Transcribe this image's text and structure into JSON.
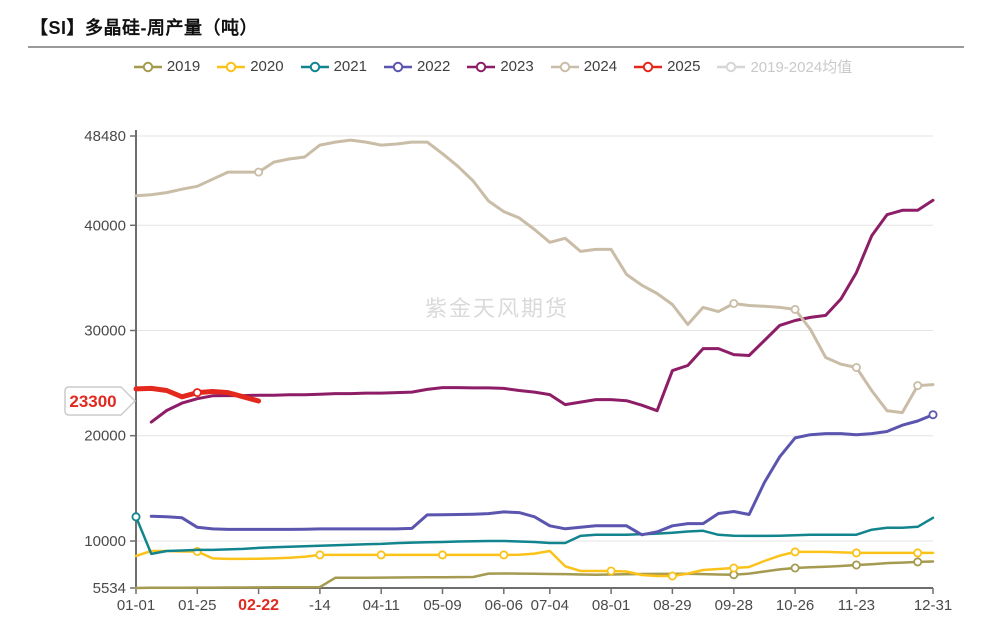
{
  "title": "【SI】多晶硅-周产量（吨）",
  "watermark": "紫金天风期货",
  "annotation": {
    "value_badge": "23300",
    "badge_color": "#e02a20",
    "highlighted_date": "02-22"
  },
  "legend": {
    "items": [
      {
        "label": "2019",
        "color": "#a49a50",
        "dimmed": false
      },
      {
        "label": "2020",
        "color": "#fbc21a",
        "dimmed": false
      },
      {
        "label": "2021",
        "color": "#12848e",
        "dimmed": false
      },
      {
        "label": "2022",
        "color": "#5b55af",
        "dimmed": false
      },
      {
        "label": "2023",
        "color": "#8d1d66",
        "dimmed": false
      },
      {
        "label": "2024",
        "color": "#cabda7",
        "dimmed": false
      },
      {
        "label": "2025",
        "color": "#e3281e",
        "dimmed": false
      },
      {
        "label": "2019-2024均值",
        "color": "#d6d6d6",
        "dimmed": true
      }
    ]
  },
  "chart_data": {
    "type": "line",
    "title": "【SI】多晶硅-周产量（吨）",
    "xlabel": "",
    "ylabel": "",
    "grid": true,
    "legend_position": "top",
    "y_axis": {
      "min": 5534,
      "max": 48480,
      "ticks": [
        48480,
        40000,
        30000,
        20000,
        10000,
        5534
      ]
    },
    "x_axis": {
      "n_points": 53,
      "labels": [
        {
          "text": "01-01",
          "i": 0,
          "highlight": false
        },
        {
          "text": "01-25",
          "i": 4,
          "highlight": false
        },
        {
          "text": "02-22",
          "i": 8,
          "highlight": true
        },
        {
          "text": "-14",
          "i": 12,
          "highlight": false
        },
        {
          "text": "04-11",
          "i": 16,
          "highlight": false
        },
        {
          "text": "05-09",
          "i": 20,
          "highlight": false
        },
        {
          "text": "06-06",
          "i": 24,
          "highlight": false
        },
        {
          "text": "07-04",
          "i": 27,
          "highlight": false
        },
        {
          "text": "08-01",
          "i": 31,
          "highlight": false
        },
        {
          "text": "08-29",
          "i": 35,
          "highlight": false
        },
        {
          "text": "09-28",
          "i": 39,
          "highlight": false
        },
        {
          "text": "10-26",
          "i": 43,
          "highlight": false
        },
        {
          "text": "11-23",
          "i": 47,
          "highlight": false
        },
        {
          "text": "12-31",
          "i": 52,
          "highlight": false
        }
      ]
    },
    "series": [
      {
        "name": "2019",
        "color": "#a49a50",
        "width": 2.5,
        "start": 0,
        "markers": [
          39,
          43,
          47,
          51
        ],
        "values": [
          5534,
          5550,
          5560,
          5560,
          5570,
          5570,
          5580,
          5580,
          5590,
          5600,
          5600,
          5610,
          5620,
          6500,
          6510,
          6510,
          6520,
          6530,
          6540,
          6550,
          6560,
          6570,
          6580,
          6900,
          6910,
          6900,
          6880,
          6865,
          6850,
          6820,
          6800,
          6820,
          6840,
          6860,
          6870,
          6870,
          6880,
          6850,
          6820,
          6800,
          6900,
          7100,
          7300,
          7430,
          7500,
          7560,
          7620,
          7715,
          7800,
          7900,
          7950,
          8010,
          8050
        ]
      },
      {
        "name": "2020",
        "color": "#fbc21a",
        "width": 2.5,
        "start": 0,
        "markers": [
          4,
          12,
          16,
          20,
          24,
          31,
          35,
          39,
          43,
          47,
          51
        ],
        "values": [
          8580,
          9050,
          9050,
          9000,
          9000,
          8350,
          8300,
          8300,
          8320,
          8350,
          8400,
          8500,
          8680,
          8680,
          8680,
          8680,
          8680,
          8680,
          8680,
          8680,
          8680,
          8680,
          8680,
          8680,
          8680,
          8700,
          8800,
          9050,
          7600,
          7150,
          7150,
          7150,
          7100,
          6770,
          6675,
          6675,
          6900,
          7240,
          7335,
          7430,
          7530,
          8100,
          8600,
          8960,
          8960,
          8960,
          8920,
          8870,
          8870,
          8870,
          8870,
          8870,
          8870
        ]
      },
      {
        "name": "2021",
        "color": "#12848e",
        "width": 2.5,
        "start": 0,
        "markers": [
          0
        ],
        "values": [
          12300,
          8770,
          9050,
          9100,
          9150,
          9150,
          9200,
          9250,
          9340,
          9400,
          9450,
          9500,
          9550,
          9600,
          9650,
          9700,
          9720,
          9800,
          9850,
          9880,
          9900,
          9950,
          9980,
          10000,
          10000,
          9950,
          9900,
          9810,
          9810,
          10480,
          10590,
          10600,
          10600,
          10650,
          10700,
          10780,
          10900,
          10970,
          10590,
          10500,
          10480,
          10480,
          10500,
          10550,
          10590,
          10590,
          10590,
          10600,
          11070,
          11260,
          11260,
          11350,
          12200
        ]
      },
      {
        "name": "2022",
        "color": "#5b55af",
        "width": 3,
        "start": 1,
        "markers": [
          52
        ],
        "values": [
          12350,
          12300,
          12200,
          11300,
          11150,
          11100,
          11100,
          11100,
          11100,
          11100,
          11120,
          11150,
          11150,
          11150,
          11150,
          11150,
          11150,
          11200,
          12480,
          12500,
          12520,
          12550,
          12600,
          12760,
          12700,
          12300,
          11440,
          11160,
          11300,
          11440,
          11440,
          11440,
          10590,
          10860,
          11440,
          11650,
          11650,
          12610,
          12800,
          12520,
          15560,
          18000,
          19800,
          20100,
          20200,
          20200,
          20100,
          20200,
          20400,
          21000,
          21400,
          22000
        ]
      },
      {
        "name": "2023",
        "color": "#8d1d66",
        "width": 3,
        "start": 1,
        "markers": [],
        "values": [
          21300,
          22400,
          23100,
          23520,
          23800,
          23810,
          23810,
          23850,
          23850,
          23900,
          23900,
          23950,
          24000,
          24000,
          24050,
          24050,
          24100,
          24150,
          24400,
          24570,
          24570,
          24550,
          24550,
          24500,
          24300,
          24150,
          23910,
          22960,
          23200,
          23430,
          23430,
          23330,
          22900,
          22380,
          26190,
          26670,
          28280,
          28280,
          27710,
          27620,
          29050,
          30480,
          30950,
          31240,
          31430,
          33000,
          35500,
          39000,
          41000,
          41420,
          41420,
          42370
        ]
      },
      {
        "name": "2024",
        "color": "#cabda7",
        "width": 3,
        "start": 0,
        "markers": [
          8,
          39,
          43,
          47,
          51
        ],
        "values": [
          42800,
          42900,
          43100,
          43430,
          43700,
          44380,
          45050,
          45050,
          45050,
          46000,
          46290,
          46480,
          47620,
          47900,
          48090,
          47900,
          47620,
          47720,
          47900,
          47900,
          46800,
          45600,
          44200,
          42300,
          41300,
          40700,
          39600,
          38380,
          38760,
          37520,
          37710,
          37710,
          35330,
          34300,
          33520,
          32470,
          30570,
          32190,
          31800,
          32570,
          32380,
          32300,
          32190,
          32000,
          30100,
          27430,
          26800,
          26480,
          24290,
          22380,
          22200,
          24760,
          24860
        ]
      },
      {
        "name": "2025",
        "color": "#e3281e",
        "width": 5,
        "start": 0,
        "markers": [
          4
        ],
        "values": [
          24450,
          24500,
          24300,
          23700,
          24100,
          24200,
          24100,
          23700,
          23300
        ]
      }
    ]
  }
}
